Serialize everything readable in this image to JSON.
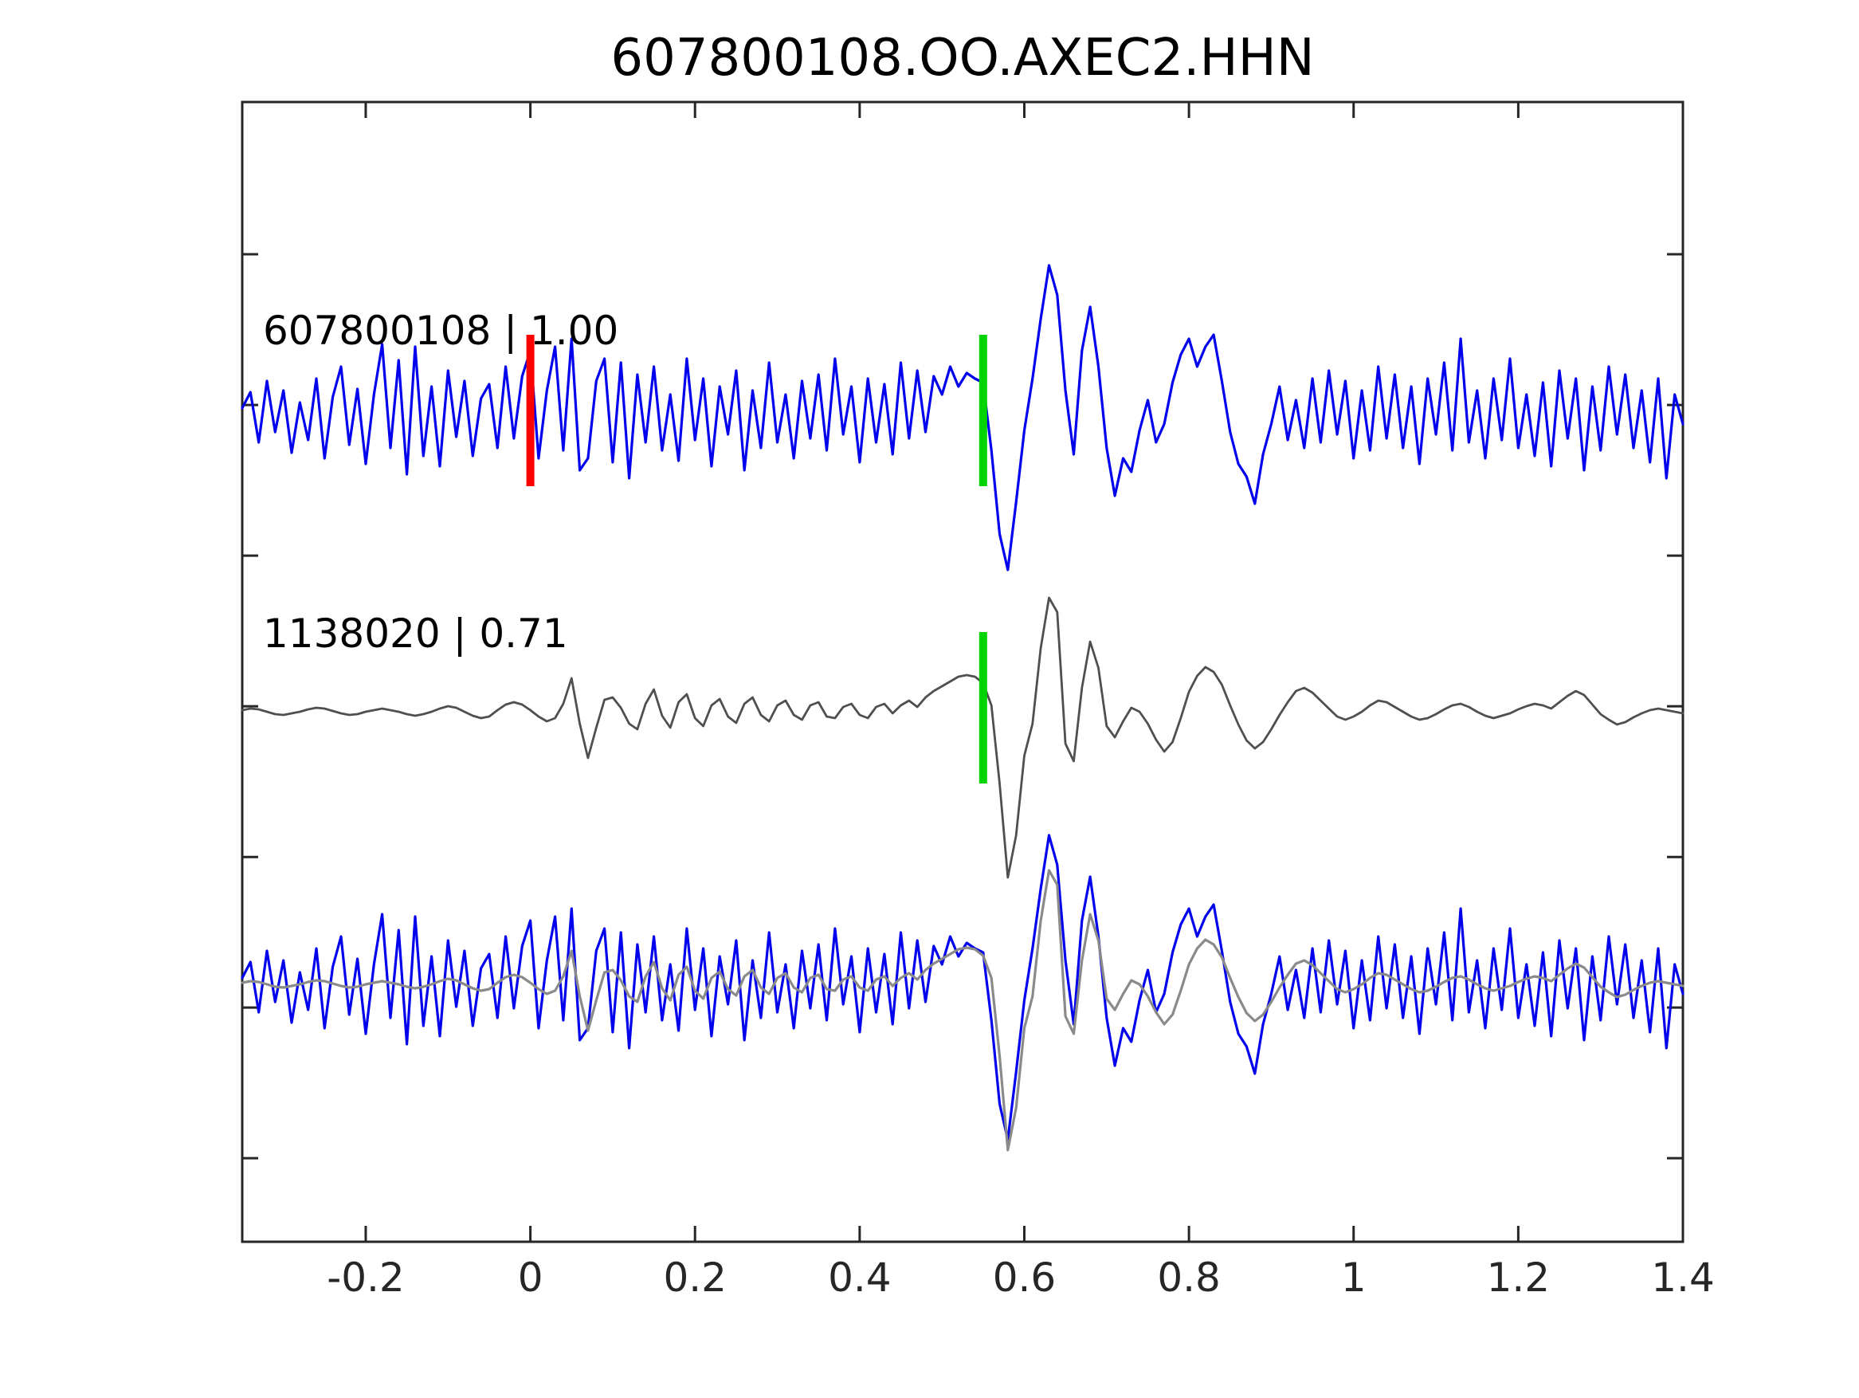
{
  "figure": {
    "title": "607800108.OO.AXEC2.HHN"
  },
  "chart_data": {
    "type": "line",
    "title": "607800108.OO.AXEC2.HHN",
    "subtitle": "",
    "xlabel": "",
    "ylabel": "",
    "xlim": [
      -0.35,
      1.4
    ],
    "grid": false,
    "legend": "none",
    "x_tick_values": [
      -0.2,
      0,
      0.2,
      0.4,
      0.6,
      0.8,
      1,
      1.2,
      1.4
    ],
    "x_tick_labels": [
      "-0.2",
      "0",
      "0.2",
      "0.4",
      "0.6",
      "0.8",
      "1",
      "1.2",
      "1.4"
    ],
    "x0": -0.35,
    "dx": 0.01,
    "colors": {
      "detection_blue": "#0000ee",
      "template_gray": "#4f4f4f",
      "overlay_gray": "#8a8a8a",
      "pick_green": "#00d400",
      "origin_red": "#ff0000",
      "axis": "#262626",
      "text": "#000000"
    },
    "rows": [
      {
        "name": "detection-trace-row",
        "label": "607800108 | 1.00"
      },
      {
        "name": "template-trace-row",
        "label": "1138020 | 0.71"
      },
      {
        "name": "overlay-trace-row",
        "label": ""
      }
    ],
    "series": [
      {
        "id": "607800108",
        "label": "607800108 | 1.00",
        "correlation": "1.00",
        "values": [
          8,
          28,
          -35,
          42,
          -22,
          30,
          -48,
          15,
          -32,
          45,
          -55,
          22,
          60,
          -38,
          32,
          -62,
          25,
          88,
          -42,
          68,
          -75,
          85,
          -52,
          35,
          -65,
          55,
          -28,
          42,
          -52,
          20,
          38,
          -42,
          60,
          -30,
          48,
          80,
          -55,
          30,
          85,
          -45,
          95,
          -70,
          -55,
          42,
          70,
          -60,
          65,
          -80,
          50,
          -35,
          60,
          -45,
          25,
          -58,
          70,
          -32,
          45,
          -65,
          35,
          -25,
          55,
          -70,
          30,
          -42,
          65,
          -35,
          25,
          -55,
          42,
          -30,
          50,
          -45,
          70,
          -25,
          35,
          -60,
          45,
          -35,
          38,
          -50,
          65,
          -30,
          55,
          -22,
          48,
          25,
          60,
          35,
          52,
          45,
          40,
          -45,
          -150,
          -195,
          -110,
          -20,
          45,
          120,
          187,
          150,
          30,
          -50,
          80,
          135,
          60,
          -42,
          -102,
          -55,
          -72,
          -20,
          18,
          -35,
          -12,
          40,
          75,
          95,
          60,
          85,
          100,
          42,
          -22,
          -62,
          -78,
          -112,
          -50,
          -12,
          35,
          -32,
          18,
          -42,
          45,
          -35,
          55,
          -25,
          42,
          -55,
          30,
          -45,
          60,
          -30,
          50,
          -42,
          35,
          -62,
          45,
          -25,
          65,
          -45,
          95,
          -35,
          30,
          -55,
          45,
          -32,
          70,
          -42,
          25,
          -52,
          40,
          -65,
          55,
          -30,
          45,
          -70,
          35,
          -45,
          60,
          -25,
          50,
          -42,
          30,
          -60,
          45,
          -80,
          25,
          -12
        ]
      },
      {
        "id": "1138020",
        "label": "1138020 | 0.71",
        "correlation": "0.71",
        "values": [
          2,
          4,
          3,
          0,
          -3,
          -4,
          -2,
          0,
          3,
          5,
          4,
          1,
          -2,
          -4,
          -3,
          0,
          2,
          4,
          2,
          0,
          -3,
          -5,
          -3,
          0,
          4,
          7,
          5,
          0,
          -5,
          -8,
          -6,
          2,
          9,
          12,
          9,
          2,
          -6,
          -12,
          -8,
          10,
          42,
          -15,
          -58,
          -20,
          15,
          18,
          5,
          -15,
          -22,
          10,
          28,
          -5,
          -20,
          12,
          22,
          -8,
          -18,
          8,
          16,
          -6,
          -14,
          10,
          18,
          -4,
          -12,
          8,
          14,
          -4,
          -10,
          8,
          12,
          -6,
          -8,
          6,
          10,
          -4,
          -8,
          6,
          10,
          -2,
          8,
          14,
          6,
          18,
          26,
          32,
          38,
          44,
          46,
          44,
          36,
          8,
          -90,
          -208,
          -155,
          -55,
          -15,
          80,
          143,
          125,
          -40,
          -62,
          30,
          88,
          55,
          -18,
          -32,
          -12,
          5,
          0,
          -15,
          -35,
          -50,
          -38,
          -8,
          25,
          45,
          56,
          50,
          34,
          8,
          -16,
          -36,
          -46,
          -38,
          -22,
          -4,
          12,
          26,
          30,
          24,
          14,
          4,
          -6,
          -10,
          -6,
          0,
          8,
          14,
          12,
          6,
          0,
          -6,
          -10,
          -8,
          -3,
          3,
          8,
          10,
          6,
          0,
          -5,
          -8,
          -5,
          -2,
          3,
          7,
          10,
          8,
          4,
          12,
          20,
          26,
          21,
          9,
          -3,
          -10,
          -16,
          -13,
          -7,
          -2,
          2,
          4,
          2,
          0,
          -2
        ]
      }
    ],
    "lines": [
      {
        "series": 0,
        "row": 0,
        "color_key": "detection_blue",
        "width": 3.2,
        "name": "detection-waveform"
      },
      {
        "series": 1,
        "row": 1,
        "color_key": "template_gray",
        "width": 2.8,
        "name": "template-waveform"
      },
      {
        "series": 0,
        "row": 2,
        "color_key": "detection_blue",
        "width": 3.2,
        "name": "overlay-detection-waveform"
      },
      {
        "series": 1,
        "row": 2,
        "color_key": "overlay_gray",
        "width": 3.2,
        "name": "overlay-template-waveform"
      }
    ],
    "markers": [
      {
        "x": 0,
        "row": 0,
        "color_key": "origin_red",
        "name": "origin-time-marker"
      },
      {
        "x": 0.55,
        "row": 0,
        "color_key": "pick_green",
        "name": "pick-marker-detection"
      },
      {
        "x": 0.55,
        "row": 1,
        "color_key": "pick_green",
        "name": "pick-marker-template"
      }
    ]
  }
}
